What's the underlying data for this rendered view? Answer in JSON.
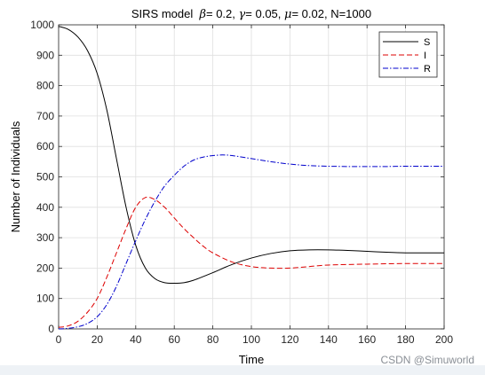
{
  "chart_data": {
    "type": "line",
    "title_parts": {
      "prefix": "SIRS model  ",
      "beta_symbol": "β",
      "beta_value": "= 0.2, ",
      "gamma_symbol": "γ",
      "gamma_value": "= 0.05, ",
      "mu_symbol": "μ",
      "mu_value": "= 0.02, N=1000"
    },
    "xlabel": "Time",
    "ylabel": "Number of Individuals",
    "xlim": [
      0,
      200
    ],
    "ylim": [
      0,
      1000
    ],
    "x_ticks": [
      "0",
      "20",
      "40",
      "60",
      "80",
      "100",
      "120",
      "140",
      "160",
      "180",
      "200"
    ],
    "y_ticks": [
      "0",
      "100",
      "200",
      "300",
      "400",
      "500",
      "600",
      "700",
      "800",
      "900",
      "1000"
    ],
    "grid": true,
    "legend_position": "top-right",
    "series": [
      {
        "name": "S",
        "color": "#000000",
        "dash": "solid",
        "x": [
          0,
          5,
          10,
          15,
          20,
          25,
          30,
          35,
          40,
          45,
          50,
          55,
          60,
          65,
          70,
          80,
          90,
          100,
          110,
          120,
          130,
          140,
          150,
          160,
          170,
          180,
          190,
          200
        ],
        "y": [
          995,
          985,
          960,
          915,
          840,
          720,
          560,
          400,
          275,
          200,
          165,
          152,
          150,
          152,
          160,
          185,
          212,
          233,
          248,
          257,
          260,
          260,
          258,
          255,
          252,
          250,
          250,
          250
        ]
      },
      {
        "name": "I",
        "color": "#dd0000",
        "dash": "dashed",
        "x": [
          0,
          5,
          10,
          15,
          20,
          25,
          30,
          35,
          40,
          45,
          50,
          55,
          60,
          65,
          70,
          75,
          80,
          90,
          100,
          110,
          120,
          130,
          140,
          160,
          180,
          200
        ],
        "y": [
          5,
          10,
          25,
          55,
          100,
          170,
          250,
          330,
          400,
          432,
          425,
          400,
          365,
          330,
          300,
          272,
          250,
          220,
          205,
          200,
          200,
          205,
          210,
          213,
          215,
          215
        ]
      },
      {
        "name": "R",
        "color": "#0000cc",
        "dash": "dashdot",
        "x": [
          0,
          5,
          10,
          15,
          20,
          25,
          30,
          35,
          40,
          45,
          50,
          55,
          60,
          65,
          70,
          75,
          80,
          85,
          90,
          100,
          110,
          120,
          130,
          140,
          150,
          160,
          170,
          180,
          190,
          200
        ],
        "y": [
          0,
          2,
          7,
          18,
          40,
          80,
          140,
          215,
          290,
          360,
          420,
          470,
          505,
          535,
          555,
          565,
          570,
          572,
          570,
          560,
          550,
          542,
          537,
          535,
          534,
          534,
          534,
          535,
          535,
          535
        ]
      }
    ]
  },
  "watermark": "CSDN @Simuworld"
}
